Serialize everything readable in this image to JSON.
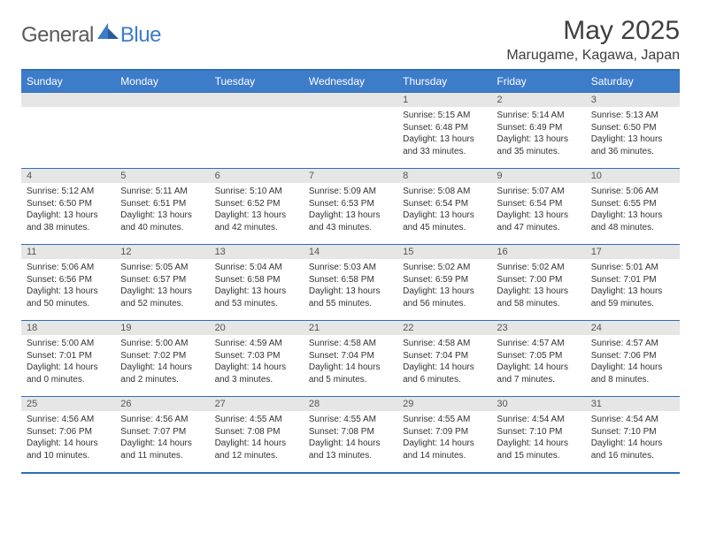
{
  "brand": {
    "text1": "General",
    "text2": "Blue"
  },
  "title": "May 2025",
  "location": "Marugame, Kagawa, Japan",
  "colors": {
    "header_bg": "#3d7cc9",
    "header_border": "#2f6fb3",
    "daynum_bg": "#e6e6e6",
    "text_dark": "#404040",
    "logo_gray": "#5a5a5a",
    "logo_blue": "#3d7cc9"
  },
  "weekdays": [
    "Sunday",
    "Monday",
    "Tuesday",
    "Wednesday",
    "Thursday",
    "Friday",
    "Saturday"
  ],
  "startOffset": 4,
  "days": [
    {
      "n": 1,
      "sunrise": "5:15 AM",
      "sunset": "6:48 PM",
      "daylight": "13 hours and 33 minutes."
    },
    {
      "n": 2,
      "sunrise": "5:14 AM",
      "sunset": "6:49 PM",
      "daylight": "13 hours and 35 minutes."
    },
    {
      "n": 3,
      "sunrise": "5:13 AM",
      "sunset": "6:50 PM",
      "daylight": "13 hours and 36 minutes."
    },
    {
      "n": 4,
      "sunrise": "5:12 AM",
      "sunset": "6:50 PM",
      "daylight": "13 hours and 38 minutes."
    },
    {
      "n": 5,
      "sunrise": "5:11 AM",
      "sunset": "6:51 PM",
      "daylight": "13 hours and 40 minutes."
    },
    {
      "n": 6,
      "sunrise": "5:10 AM",
      "sunset": "6:52 PM",
      "daylight": "13 hours and 42 minutes."
    },
    {
      "n": 7,
      "sunrise": "5:09 AM",
      "sunset": "6:53 PM",
      "daylight": "13 hours and 43 minutes."
    },
    {
      "n": 8,
      "sunrise": "5:08 AM",
      "sunset": "6:54 PM",
      "daylight": "13 hours and 45 minutes."
    },
    {
      "n": 9,
      "sunrise": "5:07 AM",
      "sunset": "6:54 PM",
      "daylight": "13 hours and 47 minutes."
    },
    {
      "n": 10,
      "sunrise": "5:06 AM",
      "sunset": "6:55 PM",
      "daylight": "13 hours and 48 minutes."
    },
    {
      "n": 11,
      "sunrise": "5:06 AM",
      "sunset": "6:56 PM",
      "daylight": "13 hours and 50 minutes."
    },
    {
      "n": 12,
      "sunrise": "5:05 AM",
      "sunset": "6:57 PM",
      "daylight": "13 hours and 52 minutes."
    },
    {
      "n": 13,
      "sunrise": "5:04 AM",
      "sunset": "6:58 PM",
      "daylight": "13 hours and 53 minutes."
    },
    {
      "n": 14,
      "sunrise": "5:03 AM",
      "sunset": "6:58 PM",
      "daylight": "13 hours and 55 minutes."
    },
    {
      "n": 15,
      "sunrise": "5:02 AM",
      "sunset": "6:59 PM",
      "daylight": "13 hours and 56 minutes."
    },
    {
      "n": 16,
      "sunrise": "5:02 AM",
      "sunset": "7:00 PM",
      "daylight": "13 hours and 58 minutes."
    },
    {
      "n": 17,
      "sunrise": "5:01 AM",
      "sunset": "7:01 PM",
      "daylight": "13 hours and 59 minutes."
    },
    {
      "n": 18,
      "sunrise": "5:00 AM",
      "sunset": "7:01 PM",
      "daylight": "14 hours and 0 minutes."
    },
    {
      "n": 19,
      "sunrise": "5:00 AM",
      "sunset": "7:02 PM",
      "daylight": "14 hours and 2 minutes."
    },
    {
      "n": 20,
      "sunrise": "4:59 AM",
      "sunset": "7:03 PM",
      "daylight": "14 hours and 3 minutes."
    },
    {
      "n": 21,
      "sunrise": "4:58 AM",
      "sunset": "7:04 PM",
      "daylight": "14 hours and 5 minutes."
    },
    {
      "n": 22,
      "sunrise": "4:58 AM",
      "sunset": "7:04 PM",
      "daylight": "14 hours and 6 minutes."
    },
    {
      "n": 23,
      "sunrise": "4:57 AM",
      "sunset": "7:05 PM",
      "daylight": "14 hours and 7 minutes."
    },
    {
      "n": 24,
      "sunrise": "4:57 AM",
      "sunset": "7:06 PM",
      "daylight": "14 hours and 8 minutes."
    },
    {
      "n": 25,
      "sunrise": "4:56 AM",
      "sunset": "7:06 PM",
      "daylight": "14 hours and 10 minutes."
    },
    {
      "n": 26,
      "sunrise": "4:56 AM",
      "sunset": "7:07 PM",
      "daylight": "14 hours and 11 minutes."
    },
    {
      "n": 27,
      "sunrise": "4:55 AM",
      "sunset": "7:08 PM",
      "daylight": "14 hours and 12 minutes."
    },
    {
      "n": 28,
      "sunrise": "4:55 AM",
      "sunset": "7:08 PM",
      "daylight": "14 hours and 13 minutes."
    },
    {
      "n": 29,
      "sunrise": "4:55 AM",
      "sunset": "7:09 PM",
      "daylight": "14 hours and 14 minutes."
    },
    {
      "n": 30,
      "sunrise": "4:54 AM",
      "sunset": "7:10 PM",
      "daylight": "14 hours and 15 minutes."
    },
    {
      "n": 31,
      "sunrise": "4:54 AM",
      "sunset": "7:10 PM",
      "daylight": "14 hours and 16 minutes."
    }
  ]
}
